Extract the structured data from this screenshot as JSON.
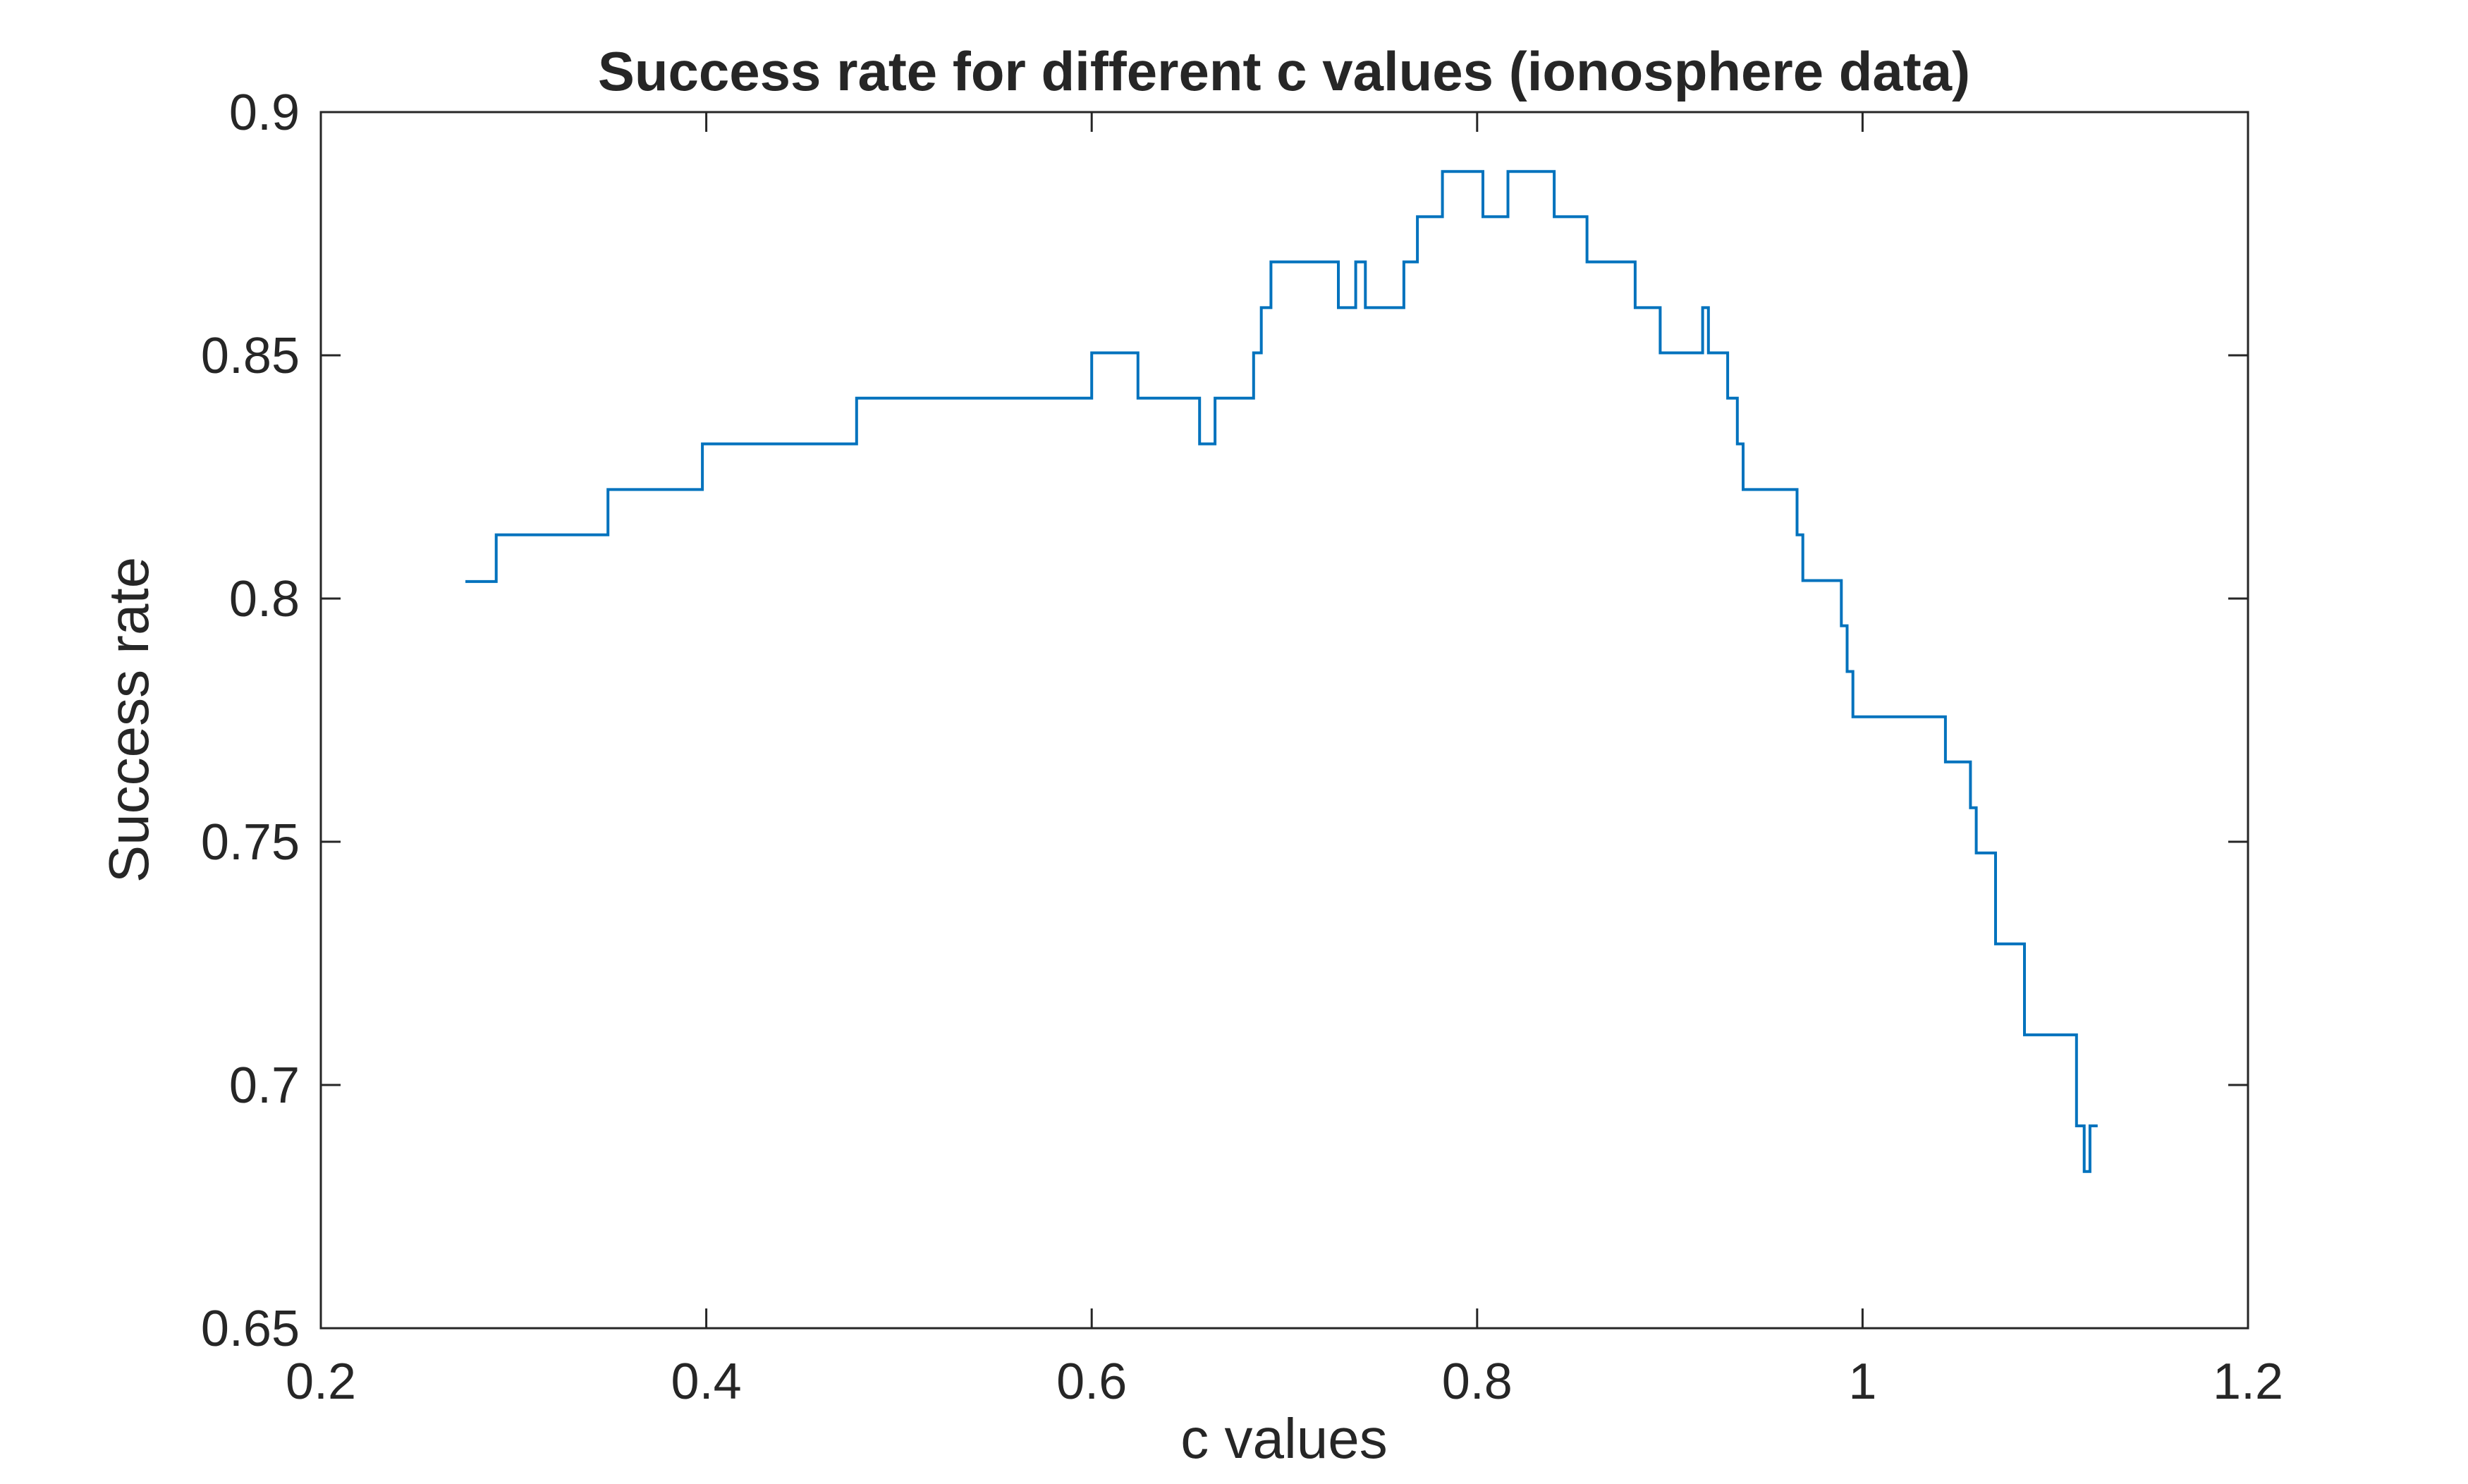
{
  "chart_data": {
    "type": "line",
    "title": "Success rate for different c values (ionosphere data)",
    "xlabel": "c values",
    "ylabel": "Success rate",
    "xlim": [
      0.2,
      1.2
    ],
    "ylim": [
      0.65,
      0.9
    ],
    "xticks": [
      0.2,
      0.4,
      0.6,
      0.8,
      1.0,
      1.2
    ],
    "xtick_labels": [
      "0.2",
      "0.4",
      "0.6",
      "0.8",
      "1",
      "1.2"
    ],
    "yticks": [
      0.65,
      0.7,
      0.75,
      0.8,
      0.85,
      0.9
    ],
    "ytick_labels": [
      "0.65",
      "0.7",
      "0.75",
      "0.8",
      "0.85",
      "0.9"
    ],
    "grid": false,
    "step": "post",
    "series": [
      {
        "name": "Success rate",
        "color": "#0072BD",
        "x": [
          0.275,
          0.291,
          0.349,
          0.398,
          0.478,
          0.6,
          0.624,
          0.656,
          0.664,
          0.684,
          0.688,
          0.693,
          0.7,
          0.728,
          0.737,
          0.742,
          0.762,
          0.765,
          0.769,
          0.782,
          0.803,
          0.816,
          0.84,
          0.857,
          0.882,
          0.895,
          0.915,
          0.917,
          0.92,
          0.93,
          0.935,
          0.938,
          0.942,
          0.966,
          0.969,
          0.972,
          0.989,
          0.992,
          0.995,
          0.997,
          1.043,
          1.056,
          1.059,
          1.064,
          1.069,
          1.084,
          1.111,
          1.115,
          1.118,
          1.122
        ],
        "y": [
          0.8035,
          0.8131,
          0.8224,
          0.8318,
          0.8412,
          0.8505,
          0.8412,
          0.8318,
          0.8412,
          0.8505,
          0.8598,
          0.8692,
          0.8692,
          0.8598,
          0.8692,
          0.8598,
          0.8692,
          0.8692,
          0.8785,
          0.8878,
          0.8785,
          0.8878,
          0.8785,
          0.8692,
          0.8598,
          0.8505,
          0.8505,
          0.8598,
          0.8505,
          0.8412,
          0.8318,
          0.8224,
          0.8224,
          0.8131,
          0.8037,
          0.8037,
          0.7944,
          0.785,
          0.7757,
          0.7757,
          0.7664,
          0.757,
          0.7477,
          0.7477,
          0.729,
          0.7103,
          0.6916,
          0.6822,
          0.6916,
          0.6916
        ]
      }
    ]
  }
}
